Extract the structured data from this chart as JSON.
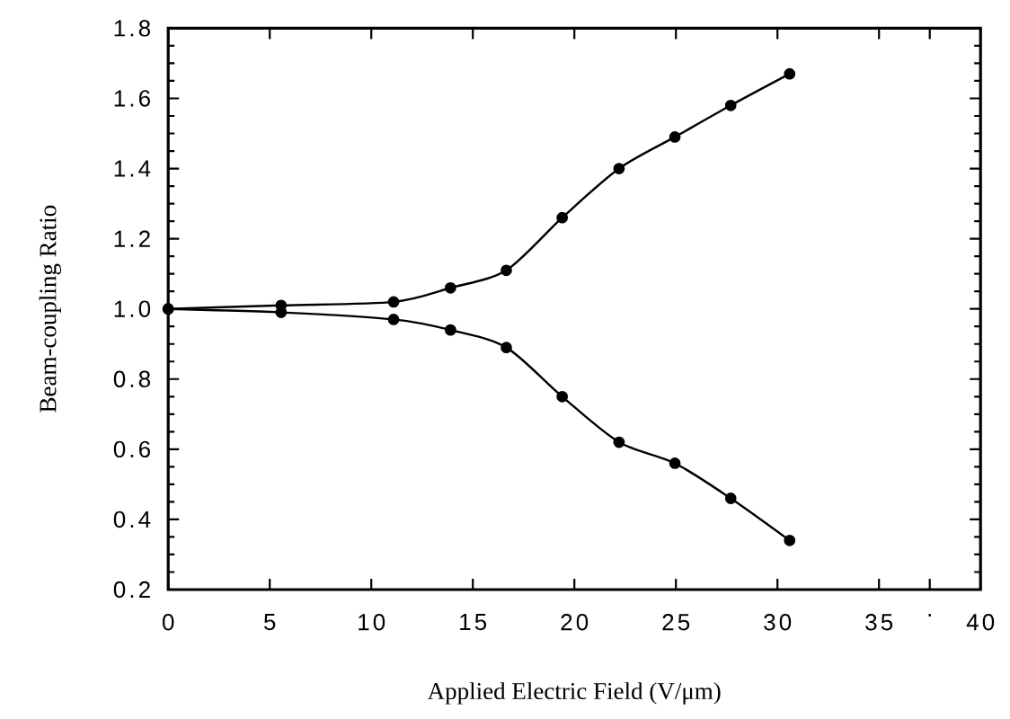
{
  "chart_data": {
    "type": "line",
    "xlabel": "Applied Electric Field (V/μm)",
    "ylabel": "Beam-coupling Ratio",
    "x": [
      0,
      5.56,
      11.1,
      13.9,
      16.65,
      19.4,
      22.2,
      24.95,
      27.7,
      30.6
    ],
    "series": [
      {
        "color": "#000000",
        "values": [
          1.0,
          1.01,
          1.02,
          1.06,
          1.11,
          1.26,
          1.4,
          1.49,
          1.58,
          1.67
        ]
      },
      {
        "color": "#000000",
        "values": [
          1.0,
          0.99,
          0.97,
          0.94,
          0.89,
          0.75,
          0.62,
          0.56,
          0.46,
          0.34
        ]
      }
    ],
    "xlim": [
      0,
      40
    ],
    "ylim": [
      0.2,
      1.8
    ],
    "xticks": [
      0,
      5,
      10,
      15,
      20,
      25,
      30,
      35,
      {
        "value": 37.5,
        "label": "."
      },
      40
    ],
    "yticks": [
      {
        "value": 0.2,
        "label": "0.2"
      },
      {
        "value": 0.4,
        "label": "0.4"
      },
      {
        "value": 0.6,
        "label": "0.6"
      },
      {
        "value": 0.8,
        "label": "0.8"
      },
      {
        "value": 1.0,
        "label": "1.0"
      },
      {
        "value": 1.2,
        "label": "1.2"
      },
      {
        "value": 1.4,
        "label": "1.4"
      },
      {
        "value": 1.6,
        "label": "1.6"
      },
      {
        "value": 1.8,
        "label": "1.8"
      }
    ],
    "marker": "circle",
    "line_style": "solid"
  }
}
